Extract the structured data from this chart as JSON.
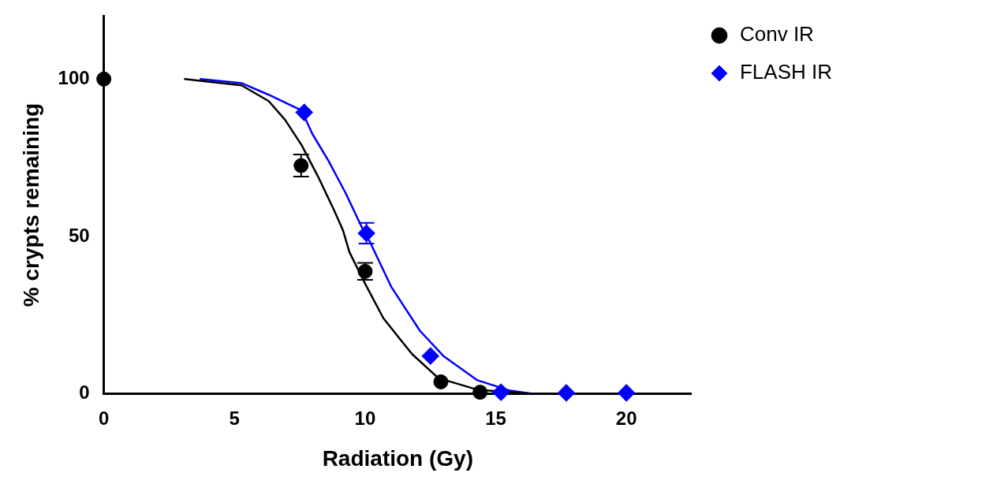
{
  "chart_data": {
    "type": "scatter",
    "xlabel": "Radiation (Gy)",
    "ylabel": "% crypts remaining",
    "xlim": [
      0,
      22.5
    ],
    "ylim": [
      0,
      120
    ],
    "xticks": [
      0,
      5,
      10,
      15,
      20
    ],
    "yticks": [
      0,
      50,
      100
    ],
    "grid": false,
    "legend": "top right",
    "series": [
      {
        "type": "line",
        "color": "#000000",
        "marker": "none",
        "x": [
          3.1,
          5.27,
          6.31,
          6.94,
          7.57,
          8.2,
          8.83,
          9.15,
          9.4,
          10,
          10.7,
          11.8,
          12.8,
          14.3,
          16.4
        ],
        "values": [
          100,
          98,
          93,
          87,
          79,
          69,
          58,
          52,
          45,
          35,
          24,
          12.6,
          5,
          1.3,
          0
        ]
      },
      {
        "type": "line",
        "color": "#0000ff",
        "marker": "none",
        "x": [
          3.7,
          5.27,
          6.31,
          7.57,
          7.98,
          8.6,
          9.24,
          9.87,
          10.2,
          11,
          12.1,
          13,
          14.3,
          15.55,
          16.4
        ],
        "values": [
          100,
          98.7,
          95,
          90,
          82.6,
          74,
          64,
          53,
          48,
          34,
          20,
          12,
          4.3,
          1,
          0
        ]
      },
      {
        "name": "Conv IR",
        "color": "#000000",
        "marker": "circle",
        "x": [
          0,
          7.55,
          10,
          12.9,
          14.4
        ],
        "values": [
          100,
          72.5,
          38.9,
          3.8,
          0.5
        ],
        "errors": [
          null,
          3.5,
          2.7,
          null,
          null
        ]
      },
      {
        "name": "FLASH IR",
        "color": "#0000ff",
        "marker": "diamond",
        "x": [
          7.67,
          10.05,
          12.5,
          15.2,
          17.7,
          20
        ],
        "values": [
          89.4,
          51,
          12,
          0.5,
          0.3,
          0.3
        ],
        "errors": [
          null,
          3.3,
          null,
          null,
          null,
          null
        ]
      }
    ]
  }
}
